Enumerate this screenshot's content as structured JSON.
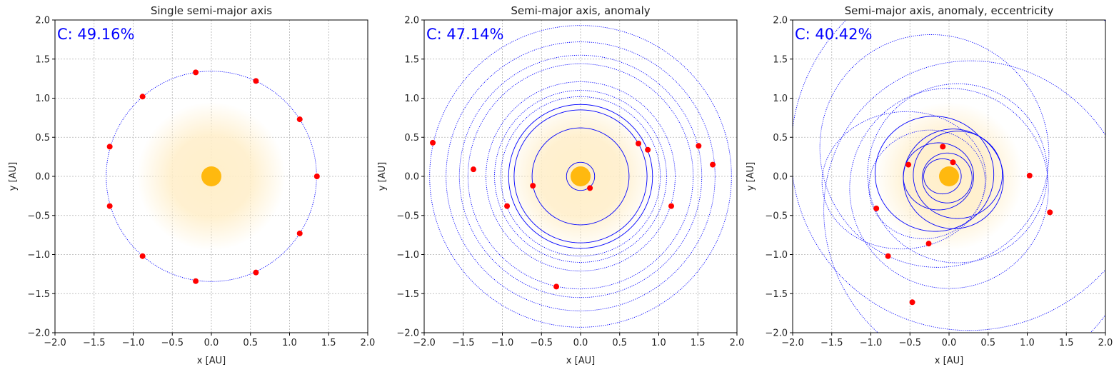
{
  "chart_data": [
    {
      "type": "scatter",
      "title": "Single semi-major axis",
      "xlabel": "x [AU]",
      "ylabel": "y [AU]",
      "xlim": [
        -2.0,
        2.0
      ],
      "ylim": [
        -2.0,
        2.0
      ],
      "xticks": [
        "−2.0",
        "−1.5",
        "−1.0",
        "−0.5",
        "0.0",
        "0.5",
        "1.0",
        "1.5",
        "2.0"
      ],
      "yticks": [
        "−2.0",
        "−1.5",
        "−1.0",
        "−0.5",
        "0.0",
        "0.5",
        "1.0",
        "1.5",
        "2.0"
      ],
      "grid": true,
      "annotation": "C: 49.16%",
      "annotation_color": "#0000ff",
      "sun_color": "#ffb90f",
      "glow_color": "#ffeec8",
      "orbit_color": "#0000ff",
      "planet_color": "#ff0000",
      "orbits": [
        {
          "a": 1.345,
          "e": 0,
          "omega_deg": 0,
          "style": "dotted"
        }
      ],
      "planets": [
        {
          "x": -0.2,
          "y": 1.33
        },
        {
          "x": 0.57,
          "y": 1.22
        },
        {
          "x": 1.13,
          "y": 0.73
        },
        {
          "x": 1.35,
          "y": 0.0
        },
        {
          "x": 1.13,
          "y": -0.73
        },
        {
          "x": 0.57,
          "y": -1.23
        },
        {
          "x": -0.2,
          "y": -1.34
        },
        {
          "x": -0.88,
          "y": -1.02
        },
        {
          "x": -1.3,
          "y": -0.38
        },
        {
          "x": -1.3,
          "y": 0.38
        },
        {
          "x": -0.88,
          "y": 1.02
        }
      ]
    },
    {
      "type": "scatter",
      "title": "Semi-major axis, anomaly",
      "xlabel": "x [AU]",
      "ylabel": "y [AU]",
      "xlim": [
        -2.0,
        2.0
      ],
      "ylim": [
        -2.0,
        2.0
      ],
      "xticks": [
        "−2.0",
        "−1.5",
        "−1.0",
        "−0.5",
        "0.0",
        "0.5",
        "1.0",
        "1.5",
        "2.0"
      ],
      "yticks": [
        "−2.0",
        "−1.5",
        "−1.0",
        "−0.5",
        "0.0",
        "0.5",
        "1.0",
        "1.5",
        "2.0"
      ],
      "grid": true,
      "annotation": "C: 47.14%",
      "annotation_color": "#0000ff",
      "sun_color": "#ffb90f",
      "glow_color": "#ffeec8",
      "orbit_color": "#0000ff",
      "planet_color": "#ff0000",
      "orbits": [
        {
          "a": 0.18,
          "e": 0,
          "omega_deg": 0,
          "style": "solid"
        },
        {
          "a": 0.62,
          "e": 0,
          "omega_deg": 0,
          "style": "solid"
        },
        {
          "a": 0.85,
          "e": 0,
          "omega_deg": 0,
          "style": "solid"
        },
        {
          "a": 0.92,
          "e": 0,
          "omega_deg": 0,
          "style": "solid"
        },
        {
          "a": 1.02,
          "e": 0,
          "omega_deg": 0,
          "style": "dotted"
        },
        {
          "a": 1.1,
          "e": 0,
          "omega_deg": 0,
          "style": "dotted"
        },
        {
          "a": 1.21,
          "e": 0,
          "omega_deg": 0,
          "style": "dotted"
        },
        {
          "a": 1.44,
          "e": 0,
          "omega_deg": 0,
          "style": "dotted"
        },
        {
          "a": 1.55,
          "e": 0,
          "omega_deg": 0,
          "style": "dotted"
        },
        {
          "a": 1.72,
          "e": 0,
          "omega_deg": 0,
          "style": "dotted"
        },
        {
          "a": 1.93,
          "e": 0,
          "omega_deg": 0,
          "style": "dotted"
        }
      ],
      "planets": [
        {
          "x": -1.89,
          "y": 0.43
        },
        {
          "x": -1.37,
          "y": 0.09
        },
        {
          "x": -0.94,
          "y": -0.38
        },
        {
          "x": -0.61,
          "y": -0.12
        },
        {
          "x": 0.12,
          "y": -0.15
        },
        {
          "x": 0.74,
          "y": 0.42
        },
        {
          "x": 0.86,
          "y": 0.34
        },
        {
          "x": 1.16,
          "y": -0.38
        },
        {
          "x": 1.51,
          "y": 0.39
        },
        {
          "x": 1.69,
          "y": 0.15
        },
        {
          "x": -0.31,
          "y": -1.41
        }
      ]
    },
    {
      "type": "scatter",
      "title": "Semi-major axis, anomaly, eccentricity",
      "xlabel": "x [AU]",
      "ylabel": "y [AU]",
      "xlim": [
        -2.0,
        2.0
      ],
      "ylim": [
        -2.0,
        2.0
      ],
      "xticks": [
        "−2.0",
        "−1.5",
        "−1.0",
        "−0.5",
        "0.0",
        "0.5",
        "1.0",
        "1.5",
        "2.0"
      ],
      "yticks": [
        "−2.0",
        "−1.5",
        "−1.0",
        "−0.5",
        "0.0",
        "0.5",
        "1.0",
        "1.5",
        "2.0"
      ],
      "grid": true,
      "annotation": "C: 40.42%",
      "annotation_color": "#0000ff",
      "sun_color": "#ffb90f",
      "glow_color": "#ffeec8",
      "orbit_color": "#0000ff",
      "planet_color": "#ff0000",
      "orbits": [
        {
          "a": 0.24,
          "e": 0.35,
          "omega_deg": 0,
          "style": "solid"
        },
        {
          "a": 0.32,
          "e": 0.1,
          "omega_deg": 40,
          "style": "solid"
        },
        {
          "a": 0.45,
          "e": 0.3,
          "omega_deg": 0,
          "style": "solid"
        },
        {
          "a": 0.57,
          "e": 0.2,
          "omega_deg": 190,
          "style": "solid"
        },
        {
          "a": 0.64,
          "e": 0.1,
          "omega_deg": 150,
          "style": "solid"
        },
        {
          "a": 0.76,
          "e": 0.25,
          "omega_deg": 350,
          "style": "solid"
        },
        {
          "a": 0.75,
          "e": 0.4,
          "omega_deg": 20,
          "style": "dotted"
        },
        {
          "a": 1.05,
          "e": 0.55,
          "omega_deg": 5,
          "style": "dotted"
        },
        {
          "a": 1.15,
          "e": 0.1,
          "omega_deg": 200,
          "style": "dotted"
        },
        {
          "a": 1.28,
          "e": 0.12,
          "omega_deg": 90,
          "style": "dotted"
        },
        {
          "a": 1.5,
          "e": 0.25,
          "omega_deg": 300,
          "style": "dotted"
        },
        {
          "a": 2.05,
          "e": 0.32,
          "omega_deg": 125,
          "style": "dotted"
        },
        {
          "a": 2.35,
          "e": 0.2,
          "omega_deg": 230,
          "style": "dotted"
        }
      ],
      "planets": [
        {
          "x": -0.08,
          "y": 0.38
        },
        {
          "x": 0.05,
          "y": 0.18
        },
        {
          "x": -0.52,
          "y": 0.15
        },
        {
          "x": 1.03,
          "y": 0.01
        },
        {
          "x": -0.93,
          "y": -0.41
        },
        {
          "x": 1.29,
          "y": -0.46
        },
        {
          "x": -0.78,
          "y": -1.02
        },
        {
          "x": -0.26,
          "y": -0.86
        },
        {
          "x": -0.47,
          "y": -1.61
        }
      ]
    }
  ]
}
